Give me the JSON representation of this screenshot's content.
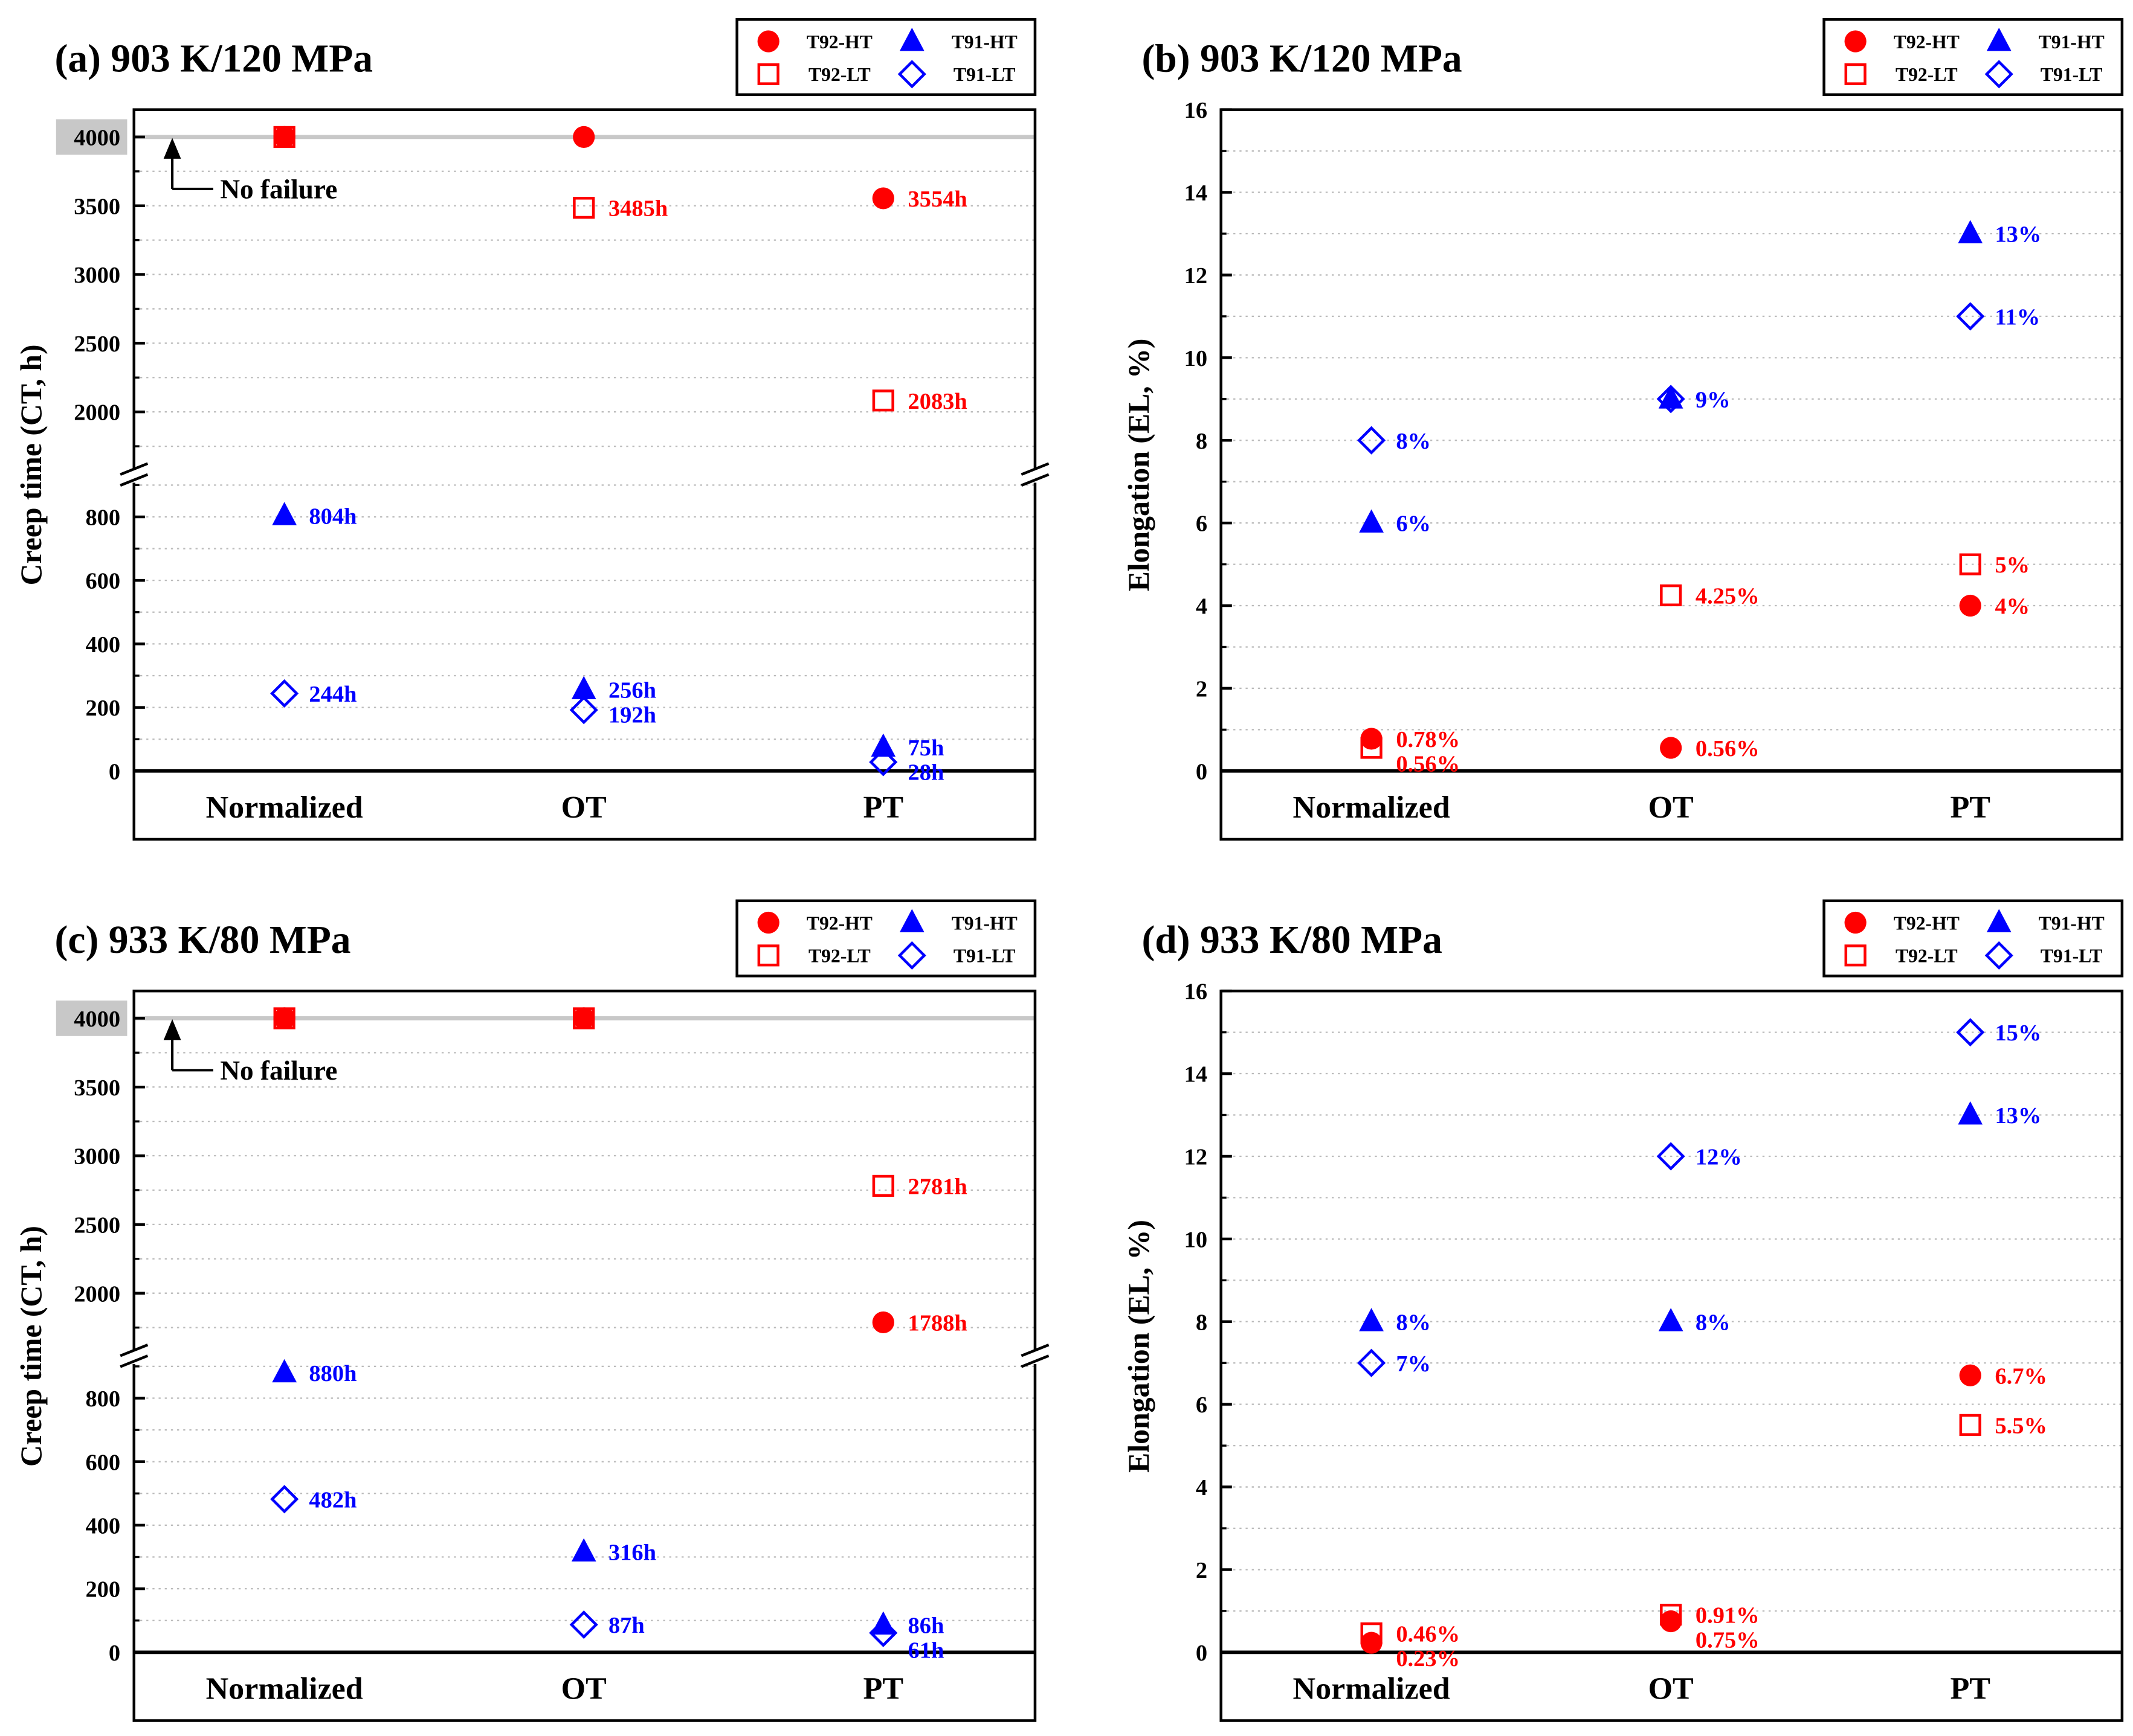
{
  "legend": {
    "T92-HT": "T92-HT",
    "T91-HT": "T91-HT",
    "T92-LT": "T92-LT",
    "T91-LT": "T91-LT"
  },
  "colors": {
    "T92": "#ff0000",
    "T91": "#0000ff",
    "grid": "#bbbbbb",
    "nofail": "#c8c8c8"
  },
  "chart_data": [
    {
      "id": "a",
      "type": "scatter",
      "kind": "creep",
      "title": "(a) 903 K/120 MPa",
      "ylabel": "Creep time (CT, h)",
      "categories": [
        "Normalized",
        "OT",
        "PT"
      ],
      "yticks_upper": [
        "2000",
        "2500",
        "3000",
        "3500",
        "4000"
      ],
      "yticks_lower": [
        "0",
        "200",
        "400",
        "600",
        "800"
      ],
      "axis_break": true,
      "ylim": [
        0,
        4200
      ],
      "annotation": "No failure",
      "series": [
        {
          "name": "T92-HT",
          "marker": "circle",
          "values": [
            4000,
            4000,
            3554
          ],
          "labels": [
            null,
            null,
            "3554h"
          ]
        },
        {
          "name": "T92-LT",
          "marker": "square",
          "values": [
            4000,
            3485,
            2083
          ],
          "labels": [
            null,
            "3485h",
            "2083h"
          ]
        },
        {
          "name": "T91-HT",
          "marker": "triangle",
          "values": [
            804,
            256,
            75
          ],
          "labels": [
            "804h",
            "256h",
            "75h"
          ]
        },
        {
          "name": "T91-LT",
          "marker": "diamond",
          "values": [
            244,
            192,
            28
          ],
          "labels": [
            "244h",
            "192h",
            "28h"
          ]
        }
      ]
    },
    {
      "id": "b",
      "type": "scatter",
      "kind": "elong",
      "title": "(b) 903 K/120 MPa",
      "ylabel": "Elongation (EL, %)",
      "categories": [
        "Normalized",
        "OT",
        "PT"
      ],
      "yticks": [
        "0",
        "2",
        "4",
        "6",
        "8",
        "10",
        "12",
        "14",
        "16"
      ],
      "ylim": [
        0,
        16
      ],
      "series": [
        {
          "name": "T92-HT",
          "marker": "circle",
          "values": [
            0.78,
            0.56,
            4
          ],
          "labels": [
            "0.78%",
            "0.56%",
            "4%"
          ]
        },
        {
          "name": "T92-LT",
          "marker": "square",
          "values": [
            0.56,
            4.25,
            5
          ],
          "labels": [
            "0.56%",
            "4.25%",
            "5%"
          ]
        },
        {
          "name": "T91-HT",
          "marker": "triangle",
          "values": [
            6,
            9,
            13
          ],
          "labels": [
            "6%",
            null,
            "13%"
          ]
        },
        {
          "name": "T91-LT",
          "marker": "diamond",
          "values": [
            8,
            9,
            11
          ],
          "labels": [
            "8%",
            "9%",
            "11%"
          ]
        }
      ]
    },
    {
      "id": "c",
      "type": "scatter",
      "kind": "creep",
      "title": "(c) 933 K/80 MPa",
      "ylabel": "Creep time (CT, h)",
      "categories": [
        "Normalized",
        "OT",
        "PT"
      ],
      "yticks_upper": [
        "2000",
        "2500",
        "3000",
        "3500",
        "4000"
      ],
      "yticks_lower": [
        "0",
        "200",
        "400",
        "600",
        "800"
      ],
      "axis_break": true,
      "ylim": [
        0,
        4200
      ],
      "annotation": "No failure",
      "series": [
        {
          "name": "T92-HT",
          "marker": "circle",
          "values": [
            4000,
            4000,
            1788
          ],
          "labels": [
            null,
            null,
            "1788h"
          ]
        },
        {
          "name": "T92-LT",
          "marker": "square",
          "values": [
            4000,
            4000,
            2781
          ],
          "labels": [
            null,
            null,
            "2781h"
          ]
        },
        {
          "name": "T91-HT",
          "marker": "triangle",
          "values": [
            880,
            316,
            86
          ],
          "labels": [
            "880h",
            "316h",
            "86h"
          ]
        },
        {
          "name": "T91-LT",
          "marker": "diamond",
          "values": [
            482,
            87,
            61
          ],
          "labels": [
            "482h",
            "87h",
            "61h"
          ]
        }
      ]
    },
    {
      "id": "d",
      "type": "scatter",
      "kind": "elong",
      "title": "(d) 933 K/80 MPa",
      "ylabel": "Elongation (EL, %)",
      "categories": [
        "Normalized",
        "OT",
        "PT"
      ],
      "yticks": [
        "0",
        "2",
        "4",
        "6",
        "8",
        "10",
        "12",
        "14",
        "16"
      ],
      "ylim": [
        0,
        16
      ],
      "series": [
        {
          "name": "T92-HT",
          "marker": "circle",
          "values": [
            0.23,
            0.75,
            6.7
          ],
          "labels": [
            "0.23%",
            "0.75%",
            "6.7%"
          ]
        },
        {
          "name": "T92-LT",
          "marker": "square",
          "values": [
            0.46,
            0.91,
            5.5
          ],
          "labels": [
            "0.46%",
            "0.91%",
            "5.5%"
          ]
        },
        {
          "name": "T91-HT",
          "marker": "triangle",
          "values": [
            8,
            8,
            13
          ],
          "labels": [
            "8%",
            "8%",
            "13%"
          ]
        },
        {
          "name": "T91-LT",
          "marker": "diamond",
          "values": [
            7,
            12,
            15
          ],
          "labels": [
            "7%",
            "12%",
            "15%"
          ]
        }
      ]
    }
  ]
}
